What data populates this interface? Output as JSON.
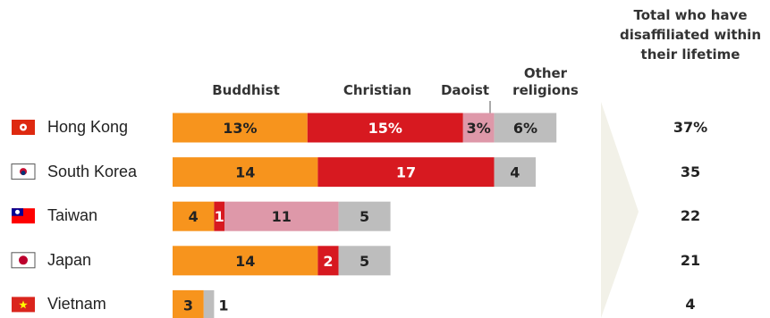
{
  "chart_data": {
    "type": "bar",
    "orientation": "horizontal",
    "stacked": true,
    "categories": [
      "Hong Kong",
      "South Korea",
      "Taiwan",
      "Japan",
      "Vietnam"
    ],
    "series": [
      {
        "name": "Buddhist",
        "values": [
          13,
          14,
          4,
          14,
          3
        ],
        "color": "#F7941D"
      },
      {
        "name": "Christian",
        "values": [
          15,
          17,
          1,
          2,
          0
        ],
        "color": "#D71920"
      },
      {
        "name": "Daoist",
        "values": [
          3,
          0,
          11,
          0,
          0
        ],
        "color": "#DE98A9"
      },
      {
        "name": "Other religions",
        "values": [
          6,
          4,
          5,
          5,
          1
        ],
        "color": "#BDBDBD"
      }
    ],
    "first_row_suffix": "%",
    "totals_header": "Total who have disaffiliated within their lifetime",
    "totals": [
      "37%",
      "35",
      "22",
      "21",
      "4"
    ],
    "legend_placement": "top",
    "grid": false
  },
  "flags": [
    "hong-kong-flag-icon",
    "south-korea-flag-icon",
    "taiwan-flag-icon",
    "japan-flag-icon",
    "vietnam-flag-icon"
  ]
}
